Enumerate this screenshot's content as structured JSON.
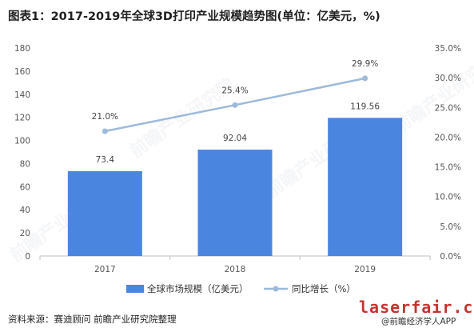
{
  "title": "图表1：2017-2019年全球3D打印产业规模趋势图(单位：亿美元，%)",
  "chart_data": {
    "type": "bar",
    "categories": [
      "2017",
      "2018",
      "2019"
    ],
    "series": [
      {
        "name": "全球市场规模（亿美元）",
        "type": "bar",
        "axis": "left",
        "color": "#4a86e0",
        "values": [
          73.4,
          92.04,
          119.56
        ],
        "labels": [
          "73.4",
          "92.04",
          "119.56"
        ]
      },
      {
        "name": "同比增长（%）",
        "type": "line",
        "axis": "right",
        "color": "#9dbadb",
        "values": [
          21.0,
          25.4,
          29.9
        ],
        "labels": [
          "21.0%",
          "25.4%",
          "29.9%"
        ]
      }
    ],
    "y_left": {
      "range": [
        0,
        180
      ],
      "ticks": [
        "0",
        "20",
        "40",
        "60",
        "80",
        "100",
        "120",
        "140",
        "160",
        "180"
      ]
    },
    "y_right": {
      "range": [
        0,
        35
      ],
      "ticks": [
        "0.0%",
        "5.0%",
        "10.0%",
        "15.0%",
        "20.0%",
        "25.0%",
        "30.0%",
        "35.0%"
      ]
    },
    "grid": false,
    "legend": "bottom"
  },
  "footer": {
    "source": "资料来源：赛迪顾问 前瞻产业研究院整理",
    "site": "laserfair.com",
    "app": "@前瞻经济学人APP"
  },
  "watermark": "前瞻产业研究院"
}
